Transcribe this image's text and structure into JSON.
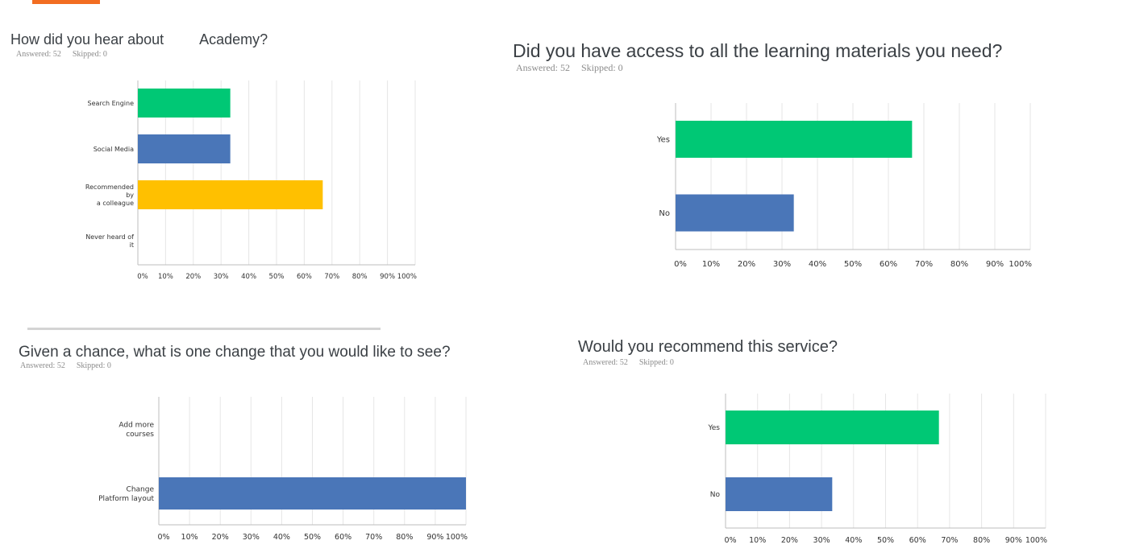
{
  "accent_color": "#f26d21",
  "bar_colors": [
    "#00c875",
    "#4a76b8",
    "#ffc000",
    "#4a76b8"
  ],
  "questions": [
    {
      "title": "How did you hear about  Academy?",
      "title_pre": "How did you hear about",
      "title_post": "Academy?",
      "answered": "Answered: 52",
      "skipped": "Skipped: 0"
    },
    {
      "title": "Did you have access to all the learning materials you need?",
      "answered": "Answered: 52",
      "skipped": "Skipped: 0"
    },
    {
      "title": "Given a chance, what is one change that you would like to see?",
      "answered": "Answered: 52",
      "skipped": "Skipped: 0"
    },
    {
      "title": "Would you recommend this service?",
      "answered": "Answered: 52",
      "skipped": "Skipped: 0"
    }
  ],
  "chart_data": [
    {
      "type": "bar",
      "orientation": "horizontal",
      "title": "How did you hear about  Academy?",
      "categories": [
        [
          "Search Engine"
        ],
        [
          "Social Media"
        ],
        [
          "Recommended",
          "by",
          "a colleague"
        ],
        [
          "Never heard of",
          "it"
        ]
      ],
      "values": [
        33.33,
        33.33,
        66.67,
        0
      ],
      "xlim": [
        0,
        100
      ],
      "ticks": [
        "0%",
        "10%",
        "20%",
        "30%",
        "40%",
        "50%",
        "60%",
        "70%",
        "80%",
        "90%",
        "100%"
      ],
      "grid": true
    },
    {
      "type": "bar",
      "orientation": "horizontal",
      "title": "Did you have access to all the learning materials you need?",
      "categories": [
        [
          "Yes"
        ],
        [
          "No"
        ]
      ],
      "values": [
        66.67,
        33.33
      ],
      "xlim": [
        0,
        100
      ],
      "ticks": [
        "0%",
        "10%",
        "20%",
        "30%",
        "40%",
        "50%",
        "60%",
        "70%",
        "80%",
        "90%",
        "100%"
      ],
      "grid": true
    },
    {
      "type": "bar",
      "orientation": "horizontal",
      "title": "Given a chance, what is one change that you would like to see?",
      "categories": [
        [
          "Add more",
          "courses"
        ],
        [
          "Change",
          "Platform layout"
        ]
      ],
      "values": [
        0,
        100
      ],
      "xlim": [
        0,
        100
      ],
      "ticks": [
        "0%",
        "10%",
        "20%",
        "30%",
        "40%",
        "50%",
        "60%",
        "70%",
        "80%",
        "90%",
        "100%"
      ],
      "grid": true
    },
    {
      "type": "bar",
      "orientation": "horizontal",
      "title": "Would you recommend this service?",
      "categories": [
        [
          "Yes"
        ],
        [
          "No"
        ]
      ],
      "values": [
        66.67,
        33.33
      ],
      "xlim": [
        0,
        100
      ],
      "ticks": [
        "0%",
        "10%",
        "20%",
        "30%",
        "40%",
        "50%",
        "60%",
        "70%",
        "80%",
        "90%",
        "100%"
      ],
      "grid": true
    }
  ]
}
